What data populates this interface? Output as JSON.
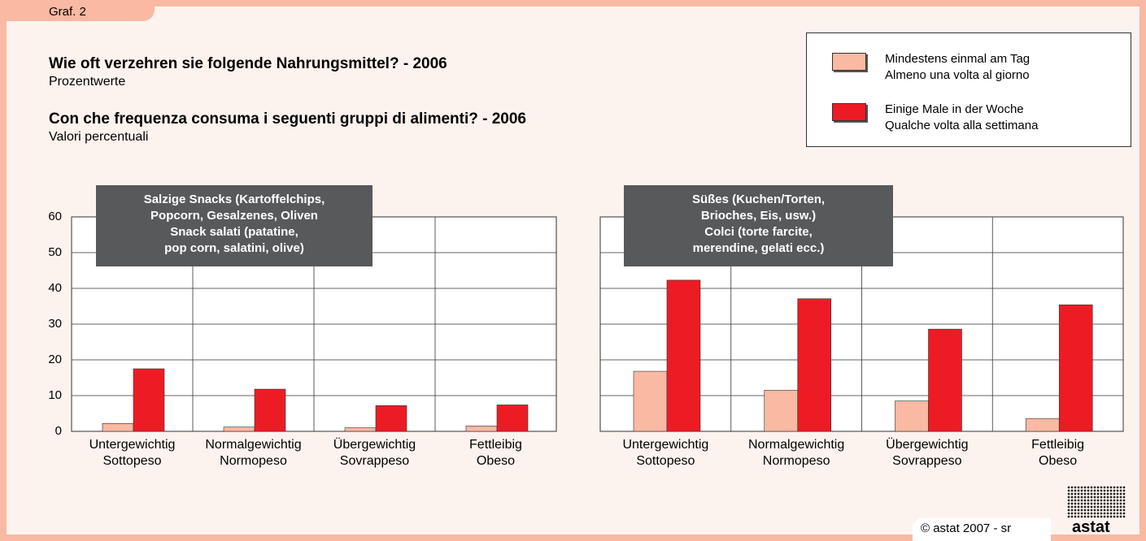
{
  "header": {
    "tab": "Graf. 2",
    "title_de": "Wie oft verzehren sie folgende Nahrungsmittel? - 2006",
    "subtitle_de": "Prozentwerte",
    "title_it": "Con che frequenza consuma i seguenti gruppi di alimenti? - 2006",
    "subtitle_it": "Valori percentuali"
  },
  "footer": {
    "credit": "© astat 2007 - sr",
    "logo": "astat"
  },
  "chart_data": [
    {
      "type": "bar",
      "title": "Salzige Snacks (Kartoffelchips,\nPopcorn, Gesalzenes, Oliven\nSnack salati (patatine,\npop corn, salatini, olive)",
      "categories": [
        "Untergewichtig\nSottopeso",
        "Normalgewichtig\nNormopeso",
        "Übergewichtig\nSovrappeso",
        "Fettleibig\nObeso"
      ],
      "series": [
        {
          "name": "Mindestens einmal am Tag\nAlmeno una volta al giorno",
          "color": "#f9b9a2",
          "values": [
            2.2,
            1.2,
            1.0,
            1.5
          ]
        },
        {
          "name": "Einige Male in der Woche\nQualche volta alla settimana",
          "color": "#ed1c24",
          "values": [
            17.5,
            11.8,
            7.2,
            7.4
          ]
        }
      ],
      "ylim": [
        0,
        60
      ],
      "yticks": [
        0,
        10,
        20,
        30,
        40,
        50,
        60
      ],
      "grid": true
    },
    {
      "type": "bar",
      "title": "Süßes (Kuchen/Torten,\nBrioches, Eis, usw.)\nColci (torte farcite,\nmerendine, gelati ecc.)",
      "categories": [
        "Untergewichtig\nSottopeso",
        "Normalgewichtig\nNormopeso",
        "Übergewichtig\nSovrappeso",
        "Fettleibig\nObeso"
      ],
      "series": [
        {
          "name": "Mindestens einmal am Tag\nAlmeno una volta al giorno",
          "color": "#f9b9a2",
          "values": [
            16.8,
            11.5,
            8.5,
            3.6
          ]
        },
        {
          "name": "Einige Male in der Woche\nQualche volta alla settimana",
          "color": "#ed1c24",
          "values": [
            42.3,
            37.1,
            28.6,
            35.4
          ]
        }
      ],
      "ylim": [
        0,
        60
      ],
      "yticks": [
        0,
        10,
        20,
        30,
        40,
        50,
        60
      ],
      "grid": true
    }
  ]
}
